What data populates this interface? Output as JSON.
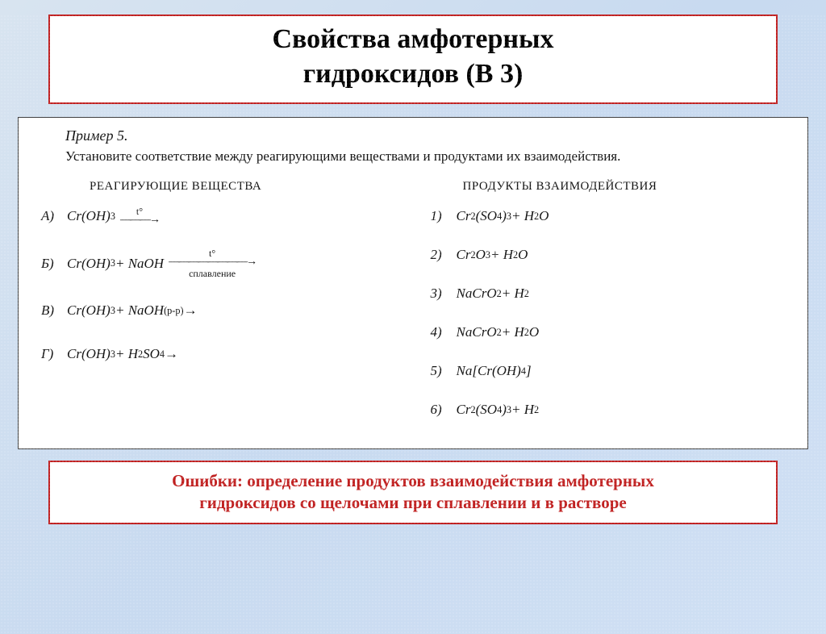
{
  "colors": {
    "accent_border": "#c02020",
    "accent_text": "#c02020",
    "box_border": "#404040",
    "background_start": "#d8e4f0",
    "background_end": "#d0e0f4",
    "text": "#000000"
  },
  "typography": {
    "title_fontsize": 34,
    "body_fontsize": 17,
    "footer_fontsize": 21,
    "header_fontsize": 15,
    "font_family_title": "Georgia, Times New Roman, serif",
    "font_family_body": "Times New Roman, serif"
  },
  "title": {
    "line1": "Свойства амфотерных",
    "line2": "гидроксидов (В 3)"
  },
  "example": {
    "label": "Пример 5.",
    "instruction": "Установите соответствие между реагирующими веществами и продуктами их взаимодействия."
  },
  "headers": {
    "left": "РЕАГИРУЮЩИЕ ВЕЩЕСТВА",
    "right": "ПРОДУКТЫ ВЗАИМОДЕЙСТВИЯ"
  },
  "reactants": [
    {
      "label": "А)",
      "lhs_html": "Cr(OH)<sub>3</sub>",
      "arrow_above": "t°",
      "arrow_below": "",
      "arrow_len": "short"
    },
    {
      "label": "Б)",
      "lhs_html": "Cr(OH)<sub>3</sub> + NaOH",
      "arrow_above": "t°",
      "arrow_below": "сплавление",
      "arrow_len": "long"
    },
    {
      "label": "В)",
      "lhs_html": "Cr(OH)<sub>3</sub> + NaOH<sub>(р-р)</sub> →",
      "arrow_above": "",
      "arrow_below": "",
      "arrow_len": "none"
    },
    {
      "label": "Г)",
      "lhs_html": "Cr(OH)<sub>3</sub> + H<sub>2</sub>SO<sub>4</sub> →",
      "arrow_above": "",
      "arrow_below": "",
      "arrow_len": "none"
    }
  ],
  "products": [
    {
      "label": "1)",
      "html": "Cr<sub>2</sub>(SO<sub>4</sub>)<sub>3</sub> + H<sub>2</sub>O"
    },
    {
      "label": "2)",
      "html": "Cr<sub>2</sub>O<sub>3</sub> + H<sub>2</sub>O"
    },
    {
      "label": "3)",
      "html": "NaCrO<sub>2</sub> + H<sub>2</sub>"
    },
    {
      "label": "4)",
      "html": "NaCrO<sub>2</sub> + H<sub>2</sub>O"
    },
    {
      "label": "5)",
      "html": "Na[Cr(OH)<sub>4</sub>]"
    },
    {
      "label": "6)",
      "html": "Cr<sub>2</sub>(SO<sub>4</sub>)<sub>3</sub> + H<sub>2</sub>"
    }
  ],
  "footer": {
    "line1": "Ошибки: определение продуктов взаимодействия амфотерных",
    "line2": "гидроксидов  со щелочами при  сплавлении и в растворе"
  }
}
